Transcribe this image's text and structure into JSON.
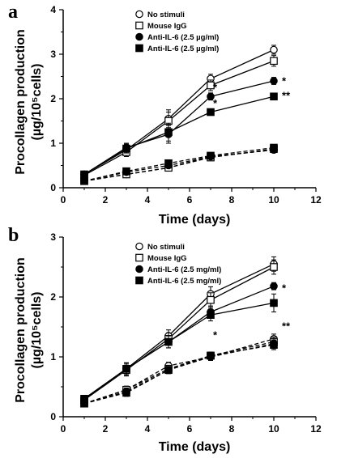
{
  "chart_data": [
    {
      "panel_label": "a",
      "type": "line",
      "xlabel": "Time  (days)",
      "ylabel": "Procollagen production (µg/10⁵cells)",
      "xlim": [
        0,
        12
      ],
      "ylim": [
        0,
        4
      ],
      "x_ticks": [
        "0",
        "2",
        "4",
        "6",
        "8",
        "10",
        "12"
      ],
      "y_ticks": [
        "0",
        "1",
        "2",
        "3",
        "4"
      ],
      "legend_position": "top-left",
      "x": [
        1,
        3,
        5,
        7,
        10
      ],
      "series": [
        {
          "name": "No stimuli",
          "marker": "open-circle",
          "line": "solid",
          "values": [
            0.3,
            0.85,
            1.55,
            2.45,
            3.1
          ],
          "errors": [
            0.03,
            0.1,
            0.2,
            0.1,
            0.1
          ]
        },
        {
          "name": "Mouse IgG",
          "marker": "open-square",
          "line": "solid",
          "values": [
            0.28,
            0.8,
            1.5,
            2.3,
            2.85
          ],
          "errors": [
            0.03,
            0.1,
            0.2,
            0.12,
            0.12
          ]
        },
        {
          "name": "Anti-IL-6 (2.5 µg/ml)",
          "marker": "filled-circle",
          "line": "solid",
          "values": [
            0.3,
            0.9,
            1.2,
            2.05,
            2.4
          ],
          "errors": [
            0.03,
            0.1,
            0.2,
            0.08,
            0.08
          ]
        },
        {
          "name": "Anti-IL-6 (2.5 µg/ml)",
          "marker": "filled-square",
          "line": "solid",
          "values": [
            0.3,
            0.88,
            1.25,
            1.7,
            2.05
          ],
          "errors": [
            0.03,
            0.1,
            0.2,
            0.06,
            0.04
          ]
        },
        {
          "name": "",
          "marker": "open-circle",
          "line": "dashed",
          "values": [
            0.15,
            0.3,
            0.45,
            0.7,
            0.85
          ],
          "errors": [
            0.02,
            0.04,
            0.04,
            0.04,
            0.04
          ]
        },
        {
          "name": "",
          "marker": "open-square",
          "line": "dashed",
          "values": [
            0.15,
            0.3,
            0.45,
            0.68,
            0.87
          ],
          "errors": [
            0.02,
            0.04,
            0.04,
            0.04,
            0.04
          ]
        },
        {
          "name": "",
          "marker": "filled-circle",
          "line": "dashed",
          "values": [
            0.15,
            0.35,
            0.5,
            0.7,
            0.85
          ],
          "errors": [
            0.02,
            0.04,
            0.04,
            0.04,
            0.04
          ]
        },
        {
          "name": "",
          "marker": "filled-square",
          "line": "dashed",
          "values": [
            0.15,
            0.37,
            0.55,
            0.72,
            0.9
          ],
          "errors": [
            0.02,
            0.04,
            0.04,
            0.04,
            0.04
          ]
        }
      ],
      "annotations": [
        {
          "text": "*",
          "x": 7,
          "y": 2.3
        },
        {
          "text": "*",
          "x": 7,
          "y": 1.95
        },
        {
          "text": "*",
          "x": 10,
          "y": 2.45
        },
        {
          "text": "**",
          "x": 10,
          "y": 2.12
        }
      ]
    },
    {
      "panel_label": "b",
      "type": "line",
      "xlabel": "Time  (days)",
      "ylabel": "Procollagen production (µg/10⁵cells)",
      "xlim": [
        0,
        12
      ],
      "ylim": [
        0,
        3
      ],
      "x_ticks": [
        "0",
        "2",
        "4",
        "6",
        "8",
        "10",
        "12"
      ],
      "y_ticks": [
        "0",
        "1",
        "2",
        "3"
      ],
      "legend_position": "top-left",
      "x": [
        1,
        3,
        5,
        7,
        10
      ],
      "series": [
        {
          "name": "No stimuli",
          "marker": "open-circle",
          "line": "solid",
          "values": [
            0.3,
            0.8,
            1.35,
            2.05,
            2.55
          ],
          "errors": [
            0.05,
            0.1,
            0.1,
            0.12,
            0.12
          ]
        },
        {
          "name": "Mouse IgG",
          "marker": "open-square",
          "line": "solid",
          "values": [
            0.28,
            0.78,
            1.3,
            1.95,
            2.5
          ],
          "errors": [
            0.05,
            0.1,
            0.1,
            0.12,
            0.12
          ]
        },
        {
          "name": "Anti-IL-6 (2.5 mg/ml)",
          "marker": "filled-circle",
          "line": "solid",
          "values": [
            0.3,
            0.8,
            1.25,
            1.75,
            2.18
          ],
          "errors": [
            0.05,
            0.1,
            0.1,
            0.1,
            0.06
          ]
        },
        {
          "name": "Anti-IL-6 (2.5 mg/ml)",
          "marker": "filled-square",
          "line": "solid",
          "values": [
            0.3,
            0.8,
            1.25,
            1.7,
            1.9
          ],
          "errors": [
            0.05,
            0.1,
            0.1,
            0.1,
            0.15
          ]
        },
        {
          "name": "",
          "marker": "open-circle",
          "line": "dashed",
          "values": [
            0.22,
            0.45,
            0.85,
            1.0,
            1.3
          ],
          "errors": [
            0.04,
            0.06,
            0.06,
            0.06,
            0.08
          ]
        },
        {
          "name": "",
          "marker": "open-square",
          "line": "dashed",
          "values": [
            0.22,
            0.45,
            0.8,
            1.02,
            1.25
          ],
          "errors": [
            0.04,
            0.06,
            0.06,
            0.06,
            0.08
          ]
        },
        {
          "name": "",
          "marker": "filled-circle",
          "line": "dashed",
          "values": [
            0.22,
            0.42,
            0.78,
            1.0,
            1.22
          ],
          "errors": [
            0.04,
            0.06,
            0.06,
            0.06,
            0.08
          ]
        },
        {
          "name": "",
          "marker": "filled-square",
          "line": "dashed",
          "values": [
            0.22,
            0.4,
            0.78,
            1.02,
            1.2
          ],
          "errors": [
            0.04,
            0.06,
            0.06,
            0.06,
            0.08
          ]
        }
      ],
      "annotations": [
        {
          "text": "*",
          "x": 7,
          "y": 1.4
        },
        {
          "text": "*",
          "x": 10,
          "y": 2.18
        },
        {
          "text": "**",
          "x": 10,
          "y": 1.55
        }
      ]
    }
  ]
}
